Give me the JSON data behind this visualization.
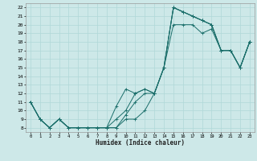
{
  "title": "",
  "xlabel": "Humidex (Indice chaleur)",
  "bg_color": "#cde8e8",
  "grid_color": "#b0d8d8",
  "line_color": "#1a6e6a",
  "xlim": [
    -0.5,
    23.5
  ],
  "ylim": [
    7.5,
    22.5
  ],
  "xticks": [
    0,
    1,
    2,
    3,
    4,
    5,
    6,
    7,
    8,
    9,
    10,
    11,
    12,
    13,
    14,
    15,
    16,
    17,
    18,
    19,
    20,
    21,
    22,
    23
  ],
  "yticks": [
    8,
    9,
    10,
    11,
    12,
    13,
    14,
    15,
    16,
    17,
    18,
    19,
    20,
    21,
    22
  ],
  "line1_x": [
    0,
    1,
    2,
    3,
    4,
    5,
    6,
    7,
    8,
    9,
    10,
    11,
    12,
    13,
    14,
    15,
    16,
    17,
    18,
    19,
    20,
    21,
    22,
    23
  ],
  "line1_y": [
    11,
    9,
    8,
    9,
    8,
    8,
    8,
    8,
    8,
    8,
    9,
    9,
    10,
    12,
    15,
    20,
    20,
    20,
    19,
    19.5,
    17,
    17,
    15,
    18
  ],
  "line2_x": [
    0,
    1,
    2,
    3,
    4,
    5,
    6,
    7,
    8,
    9,
    10,
    11,
    12,
    13,
    14,
    15,
    16,
    17,
    18,
    19,
    20,
    21,
    22,
    23
  ],
  "line2_y": [
    11,
    9,
    8,
    9,
    8,
    8,
    8,
    8,
    8,
    10.5,
    12.5,
    12,
    12.5,
    12,
    15,
    22,
    21.5,
    21,
    20.5,
    20,
    17,
    17,
    15,
    18
  ],
  "line3_x": [
    0,
    1,
    2,
    3,
    4,
    5,
    6,
    7,
    8,
    9,
    10,
    11,
    12,
    13,
    14,
    15,
    16,
    17,
    18,
    19,
    20,
    21,
    22,
    23
  ],
  "line3_y": [
    11,
    9,
    8,
    9,
    8,
    8,
    8,
    8,
    8,
    9,
    10,
    12,
    12.5,
    12,
    15,
    22,
    21.5,
    21,
    20.5,
    20,
    17,
    17,
    15,
    18
  ],
  "line4_x": [
    0,
    1,
    2,
    3,
    4,
    5,
    6,
    7,
    8,
    9,
    10,
    11,
    12,
    13,
    14,
    15,
    16,
    17,
    18,
    19,
    20,
    21,
    22,
    23
  ],
  "line4_y": [
    11,
    9,
    8,
    9,
    8,
    8,
    8,
    8,
    8,
    8,
    9.5,
    11,
    12,
    12,
    15,
    22,
    21.5,
    21,
    20.5,
    20,
    17,
    17,
    15,
    18
  ]
}
